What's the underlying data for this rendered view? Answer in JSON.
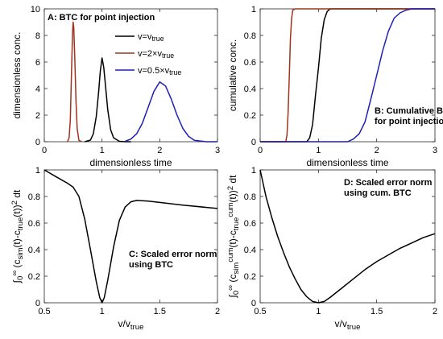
{
  "chart_data": [
    {
      "type": "line",
      "panel": "A",
      "annotation": "A: BTC for point injection",
      "xlabel": "dimensionless time",
      "ylabel": "dimensionless conc.",
      "xlim": [
        0,
        3
      ],
      "ylim": [
        0,
        10
      ],
      "xticks": [
        0,
        1,
        2,
        3
      ],
      "yticks": [
        0,
        2,
        4,
        6,
        8,
        10
      ],
      "legend_position": "top-right",
      "series": [
        {
          "name": "v=v_true",
          "color": "#000000",
          "x": [
            0.7,
            0.8,
            0.85,
            0.9,
            0.94,
            0.97,
            1.0,
            1.03,
            1.06,
            1.1,
            1.15,
            1.2,
            1.3,
            1.4,
            1.5
          ],
          "y": [
            0,
            0.12,
            0.6,
            1.9,
            3.7,
            5.3,
            6.3,
            5.6,
            4.2,
            2.4,
            0.9,
            0.3,
            0.03,
            0,
            0
          ]
        },
        {
          "name": "v=2×v_true",
          "color": "#a0321e",
          "x": [
            0.4,
            0.43,
            0.45,
            0.47,
            0.49,
            0.5,
            0.51,
            0.53,
            0.55,
            0.57,
            0.6,
            0.65
          ],
          "y": [
            0,
            0.3,
            1.6,
            5.0,
            8.3,
            9.0,
            8.6,
            6.0,
            3.0,
            1.0,
            0.1,
            0
          ]
        },
        {
          "name": "v=0.5×v_true",
          "color": "#1f1fb4",
          "x": [
            1.4,
            1.5,
            1.6,
            1.7,
            1.8,
            1.9,
            2.0,
            2.1,
            2.2,
            2.3,
            2.4,
            2.5,
            2.6,
            2.8,
            3.0
          ],
          "y": [
            0.03,
            0.2,
            0.6,
            1.4,
            2.6,
            3.8,
            4.5,
            4.2,
            3.2,
            2.0,
            1.0,
            0.4,
            0.1,
            0,
            0
          ]
        }
      ]
    },
    {
      "type": "line",
      "panel": "B",
      "annotation": [
        "B: Cumulative BTC",
        "for point injection"
      ],
      "xlabel": "dimensionless time",
      "ylabel": "cumulative conc.",
      "xlim": [
        0,
        3
      ],
      "ylim": [
        0,
        1
      ],
      "xticks": [
        0,
        1,
        2,
        3
      ],
      "yticks": [
        0,
        0.2,
        0.4,
        0.6,
        0.8,
        1
      ],
      "series": [
        {
          "color": "#000000",
          "x": [
            0,
            0.8,
            0.85,
            0.9,
            0.95,
            1.0,
            1.05,
            1.1,
            1.15,
            1.2,
            3.0
          ],
          "y": [
            0,
            0,
            0.03,
            0.13,
            0.35,
            0.55,
            0.78,
            0.92,
            0.98,
            1,
            1
          ]
        },
        {
          "color": "#a0321e",
          "x": [
            0,
            0.44,
            0.46,
            0.48,
            0.5,
            0.52,
            0.54,
            0.56,
            0.6,
            3.0
          ],
          "y": [
            0,
            0,
            0.05,
            0.22,
            0.5,
            0.78,
            0.93,
            0.99,
            1,
            1
          ]
        },
        {
          "color": "#1f1fb4",
          "x": [
            0,
            1.5,
            1.6,
            1.7,
            1.8,
            1.9,
            2.0,
            2.1,
            2.2,
            2.3,
            2.4,
            2.5,
            2.6,
            3.0
          ],
          "y": [
            0,
            0,
            0.02,
            0.06,
            0.15,
            0.32,
            0.5,
            0.68,
            0.83,
            0.93,
            0.97,
            0.99,
            1,
            1
          ]
        }
      ]
    },
    {
      "type": "line",
      "panel": "C",
      "annotation": [
        "C: Scaled error norm",
        "using BTC"
      ],
      "xlabel": "v/v_true",
      "ylabel": "∫₀^∞ (c_sim(t)-c_true(t))² dt",
      "xlim": [
        0.5,
        2
      ],
      "ylim": [
        0,
        1
      ],
      "xticks": [
        0.5,
        1,
        1.5,
        2
      ],
      "yticks": [
        0,
        0.2,
        0.4,
        0.6,
        0.8,
        1
      ],
      "series": [
        {
          "color": "#000000",
          "x": [
            0.5,
            0.6,
            0.7,
            0.75,
            0.8,
            0.85,
            0.9,
            0.95,
            0.98,
            1.0,
            1.02,
            1.05,
            1.1,
            1.15,
            1.2,
            1.25,
            1.3,
            1.4,
            1.5,
            1.7,
            2.0
          ],
          "y": [
            1.0,
            0.95,
            0.9,
            0.87,
            0.8,
            0.63,
            0.4,
            0.16,
            0.04,
            0.0,
            0.04,
            0.17,
            0.42,
            0.62,
            0.72,
            0.76,
            0.77,
            0.765,
            0.755,
            0.735,
            0.71
          ]
        }
      ]
    },
    {
      "type": "line",
      "panel": "D",
      "annotation": [
        "D: Scaled error norm",
        "using cum. BTC"
      ],
      "xlabel": "v/v_true",
      "ylabel": "∫₀^∞ (c_sim^cum(t)-c_true^cum(t))² dt",
      "xlim": [
        0.5,
        2
      ],
      "ylim": [
        0,
        1
      ],
      "xticks": [
        0.5,
        1,
        1.5,
        2
      ],
      "yticks": [
        0,
        0.2,
        0.4,
        0.6,
        0.8,
        1
      ],
      "series": [
        {
          "color": "#000000",
          "x": [
            0.5,
            0.55,
            0.6,
            0.65,
            0.7,
            0.75,
            0.8,
            0.85,
            0.9,
            0.95,
            1.0,
            1.05,
            1.1,
            1.2,
            1.3,
            1.4,
            1.5,
            1.6,
            1.7,
            1.8,
            1.9,
            2.0
          ],
          "y": [
            1.0,
            0.8,
            0.64,
            0.5,
            0.38,
            0.27,
            0.18,
            0.1,
            0.045,
            0.01,
            0.0,
            0.01,
            0.04,
            0.11,
            0.18,
            0.25,
            0.31,
            0.36,
            0.41,
            0.45,
            0.49,
            0.52
          ]
        }
      ]
    }
  ]
}
